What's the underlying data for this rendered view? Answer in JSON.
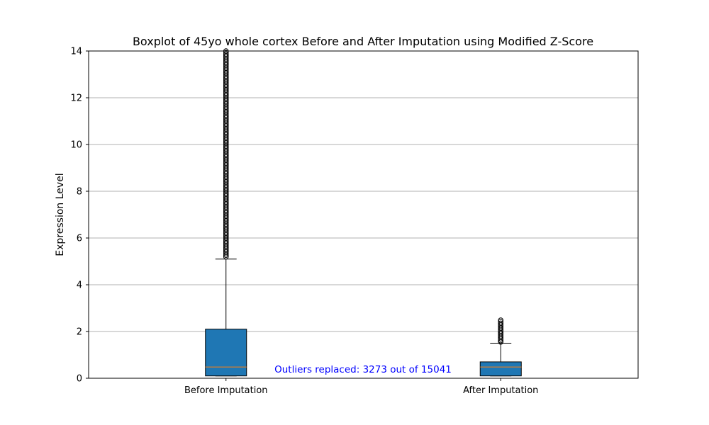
{
  "chart_data": {
    "type": "boxplot",
    "title": "Boxplot of 45yo whole cortex Before and After Imputation using Modified Z-Score",
    "xlabel": "",
    "ylabel": "Expression Level",
    "ylim": [
      0,
      14
    ],
    "yticks": [
      0,
      2,
      4,
      6,
      8,
      10,
      12,
      14
    ],
    "ytick_labels": [
      "0",
      "2",
      "4",
      "6",
      "8",
      "10",
      "12",
      "14"
    ],
    "grid": "horizontal",
    "categories": [
      "Before Imputation",
      "After Imputation"
    ],
    "boxes": [
      {
        "category": "Before Imputation",
        "whisker_low": 0.1,
        "q1": 0.1,
        "median": 0.48,
        "q3": 2.1,
        "whisker_high": 5.1,
        "outliers_from": 5.2,
        "outliers_to": 14
      },
      {
        "category": "After Imputation",
        "whisker_low": 0.1,
        "q1": 0.1,
        "median": 0.48,
        "q3": 0.7,
        "whisker_high": 1.5,
        "outliers_from": 1.55,
        "outliers_to": 2.5
      }
    ],
    "annotation": "Outliers replaced: 3273 out of 15041",
    "colors": {
      "box_fill": "#1f77b4",
      "median": "#ff7f0e",
      "annotation": "#0000ff",
      "grid": "#b0b0b0"
    }
  }
}
